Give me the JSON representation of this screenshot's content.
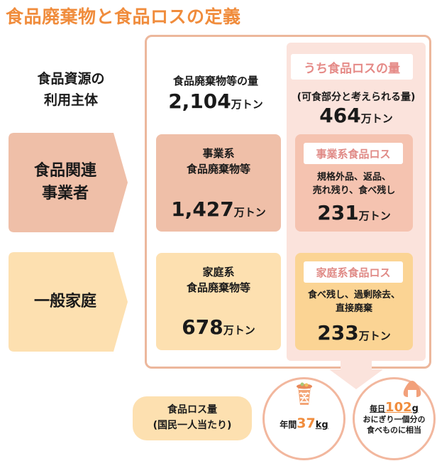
{
  "title": "食品廃棄物と食品ロスの定義",
  "left_header": {
    "line1": "食品資源の",
    "line2": "利用主体"
  },
  "total_waste": {
    "label": "食品廃棄物等の量",
    "value": "2,104",
    "unit": "万トン"
  },
  "loss_column": {
    "label": "うち食品ロスの量",
    "note": "(可食部分と考えられる量)",
    "value": "464",
    "unit": "万トン"
  },
  "rows": [
    {
      "actor_line1": "食品関連",
      "actor_line2": "事業者",
      "waste_line1": "事業系",
      "waste_line2": "食品廃棄物等",
      "waste_value": "1,427",
      "waste_unit": "万トン",
      "loss_label": "事業系食品ロス",
      "loss_desc_line1": "規格外品、返品、",
      "loss_desc_line2": "売れ残り、食べ残し",
      "loss_value": "231",
      "loss_unit": "万トン"
    },
    {
      "actor_line1": "一般家庭",
      "actor_line2": "",
      "waste_line1": "家庭系",
      "waste_line2": "食品廃棄物等",
      "waste_value": "678",
      "waste_unit": "万トン",
      "loss_label": "家庭系食品ロス",
      "loss_desc_line1": "食べ残し、過剰除去、",
      "loss_desc_line2": "直接廃棄",
      "loss_value": "233",
      "loss_unit": "万トン"
    }
  ],
  "per_capita": {
    "label_line1": "食品ロス量",
    "label_line2": "(国民一人当たり)",
    "yearly_prefix": "年間",
    "yearly_value": "37",
    "yearly_unit": "kg",
    "daily_prefix": "毎日",
    "daily_value": "102",
    "daily_unit": "g",
    "daily_line2": "おにぎり一個分の",
    "daily_line3": "食べものに相当"
  },
  "colors": {
    "title": "#f08c3c",
    "business": "#efbfa8",
    "household": "#fde0b0",
    "loss_bg": "#fbe3dc",
    "accent": "#f08c3c"
  },
  "icons": [
    "trash-bin-icon",
    "rice-ball-icon"
  ]
}
